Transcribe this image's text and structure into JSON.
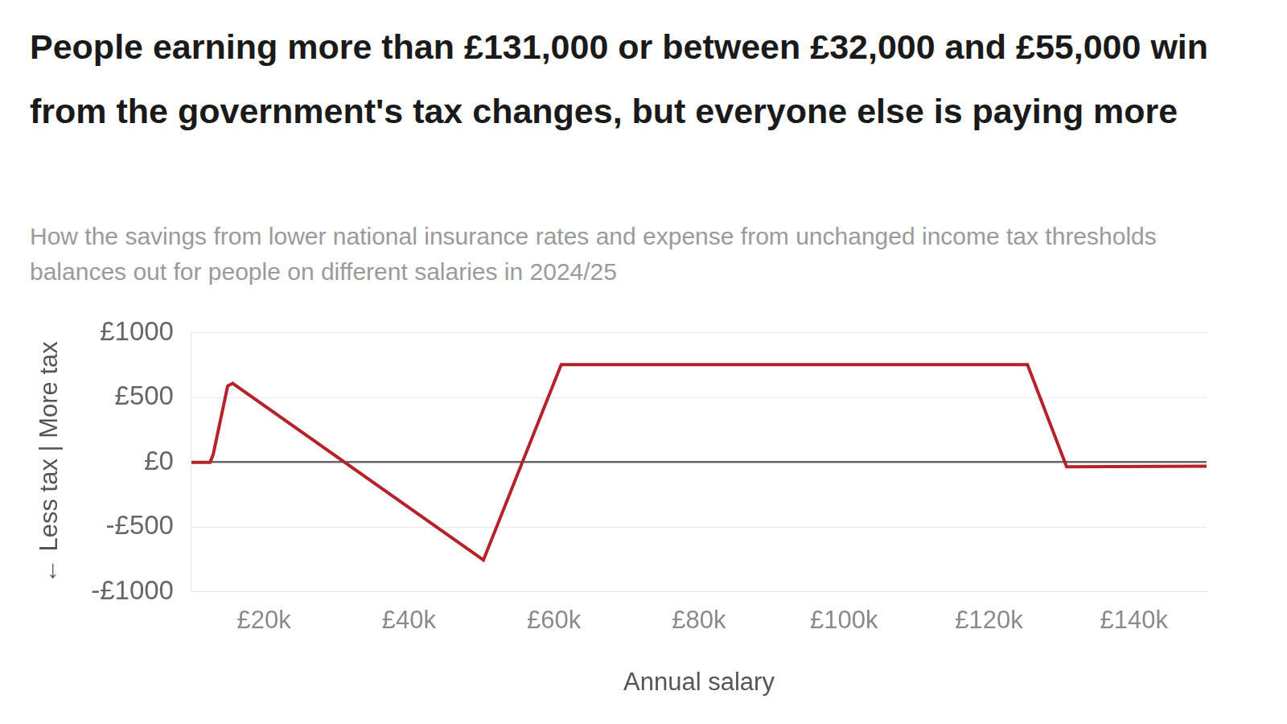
{
  "chart_data": {
    "type": "line",
    "title": "People earning more than £131,000 or between £32,000 and £55,000 win from the government's tax changes, but everyone else is paying more",
    "subtitle": "How the savings from lower national insurance rates and expense from unchanged income tax thresholds balances out for people on different salaries in 2024/25",
    "x_label": "Annual salary",
    "y_label": "← Less tax | More tax",
    "x": [
      10000,
      12570,
      13000,
      15000,
      15700,
      50270,
      61000,
      125300,
      130700,
      150000
    ],
    "values": [
      0,
      0,
      60,
      590,
      610,
      -755,
      755,
      755,
      -35,
      -30
    ],
    "color": "#b5222a",
    "xlim": [
      10000,
      150000
    ],
    "xticks": [
      {
        "value": 20000,
        "label": "£20k"
      },
      {
        "value": 40000,
        "label": "£40k"
      },
      {
        "value": 60000,
        "label": "£60k"
      },
      {
        "value": 80000,
        "label": "£80k"
      },
      {
        "value": 100000,
        "label": "£100k"
      },
      {
        "value": 120000,
        "label": "£120k"
      },
      {
        "value": 140000,
        "label": "£140k"
      }
    ],
    "ylim": [
      -1000,
      1000
    ],
    "yticks": [
      {
        "value": -1000,
        "label": "-£1000"
      },
      {
        "value": -500,
        "label": "-£500"
      },
      {
        "value": 0,
        "label": "£0"
      },
      {
        "value": 500,
        "label": "£500"
      },
      {
        "value": 1000,
        "label": "£1000"
      }
    ],
    "grid": true
  }
}
